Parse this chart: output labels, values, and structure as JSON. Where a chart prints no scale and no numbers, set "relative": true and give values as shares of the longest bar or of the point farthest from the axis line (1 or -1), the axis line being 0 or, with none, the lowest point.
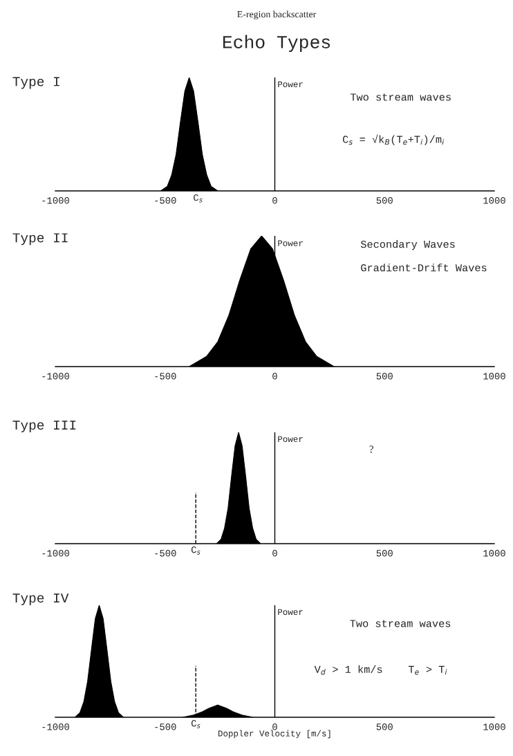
{
  "chart_data": [
    {
      "type": "area",
      "title": "Type I",
      "relative": true,
      "xlim": [
        -1000,
        1000
      ],
      "xticks": [
        -1000,
        -500,
        0,
        500,
        1000
      ],
      "tick_labels": "x",
      "grid": false,
      "legend": false,
      "series": [
        {
          "color": "#000000",
          "x": [
            -520,
            -490,
            -470,
            -450,
            -430,
            -410,
            -390,
            -370,
            -350,
            -330,
            -310,
            -290,
            -260
          ],
          "values": [
            0,
            0.04,
            0.14,
            0.32,
            0.61,
            0.88,
            1,
            0.88,
            0.61,
            0.32,
            0.14,
            0.04,
            0
          ]
        }
      ],
      "ref_lines": [
        {
          "axis": "x",
          "value": 0,
          "label": "Power",
          "line_style": "solid"
        }
      ],
      "annotations": [
        "E-region backscatter",
        "Echo Types",
        "Two stream waves",
        "C$_{s}$ = √k$_{B}$(T$_{e}$+T$_{i}$)/m$_{i}$",
        {
          "text": "C$_{s}$",
          "x": -350,
          "y": 0
        }
      ]
    },
    {
      "type": "area",
      "title": "Type II",
      "relative": true,
      "xlim": [
        -1000,
        1000
      ],
      "xticks": [
        -1000,
        -500,
        0,
        500,
        1000
      ],
      "tick_labels": "x",
      "grid": false,
      "legend": false,
      "series": [
        {
          "color": "#000000",
          "x": [
            -390,
            -310,
            -260,
            -210,
            -160,
            -110,
            -60,
            -10,
            40,
            90,
            140,
            190,
            270
          ],
          "values": [
            0,
            0.08,
            0.19,
            0.39,
            0.66,
            0.9,
            1,
            0.9,
            0.66,
            0.39,
            0.19,
            0.08,
            0
          ]
        }
      ],
      "ref_lines": [
        {
          "axis": "x",
          "value": 0,
          "label": "Power",
          "line_style": "solid"
        }
      ],
      "annotations": [
        "Secondary Waves",
        "Gradient-Drift Waves"
      ]
    },
    {
      "type": "area",
      "title": "Type III",
      "relative": true,
      "xlim": [
        -1000,
        1000
      ],
      "xticks": [
        -1000,
        -500,
        0,
        500,
        1000
      ],
      "tick_labels": "x",
      "grid": false,
      "legend": false,
      "series": [
        {
          "color": "#000000",
          "x": [
            -265,
            -245,
            -229,
            -213,
            -197,
            -181,
            -165,
            -149,
            -133,
            -117,
            -101,
            -85,
            -65
          ],
          "values": [
            0,
            0.04,
            0.14,
            0.32,
            0.61,
            0.88,
            1,
            0.88,
            0.61,
            0.32,
            0.14,
            0.04,
            0
          ]
        }
      ],
      "ref_lines": [
        {
          "axis": "x",
          "value": 0,
          "label": "Power",
          "line_style": "solid"
        },
        {
          "axis": "x",
          "value": -360,
          "label": "C$_{s}$",
          "line_style": "dashed"
        }
      ],
      "annotations": [
        "?"
      ]
    },
    {
      "type": "area",
      "title": "Type IV",
      "relative": true,
      "xlim": [
        -1000,
        1000
      ],
      "xticks": [
        -1000,
        -500,
        0,
        500,
        1000
      ],
      "tick_labels": "x",
      "grid": false,
      "legend": false,
      "xlabel": "Doppler Velocity [m/s]",
      "series": [
        {
          "color": "#000000",
          "x": [
            -910,
            -888,
            -870,
            -853,
            -835,
            -818,
            -800,
            -782,
            -765,
            -747,
            -730,
            -712,
            -690
          ],
          "values": [
            0,
            0.04,
            0.14,
            0.32,
            0.61,
            0.88,
            1,
            0.88,
            0.61,
            0.32,
            0.14,
            0.04,
            0
          ]
        },
        {
          "color": "#000000",
          "x": [
            -420,
            -370,
            -330,
            -300,
            -260,
            -220,
            -190,
            -150,
            -100
          ],
          "values": [
            0,
            0.02,
            0.05,
            0.08,
            0.11,
            0.08,
            0.05,
            0.02,
            0
          ]
        }
      ],
      "ref_lines": [
        {
          "axis": "x",
          "value": 0,
          "label": "Power",
          "line_style": "solid"
        },
        {
          "axis": "x",
          "value": -360,
          "label": "C$_{s}$",
          "line_style": "dashed"
        }
      ],
      "annotations": [
        "Two stream waves",
        "V$_{d}$ > 1 km/s    T$_{e}$ > T$_{i}$"
      ]
    }
  ]
}
